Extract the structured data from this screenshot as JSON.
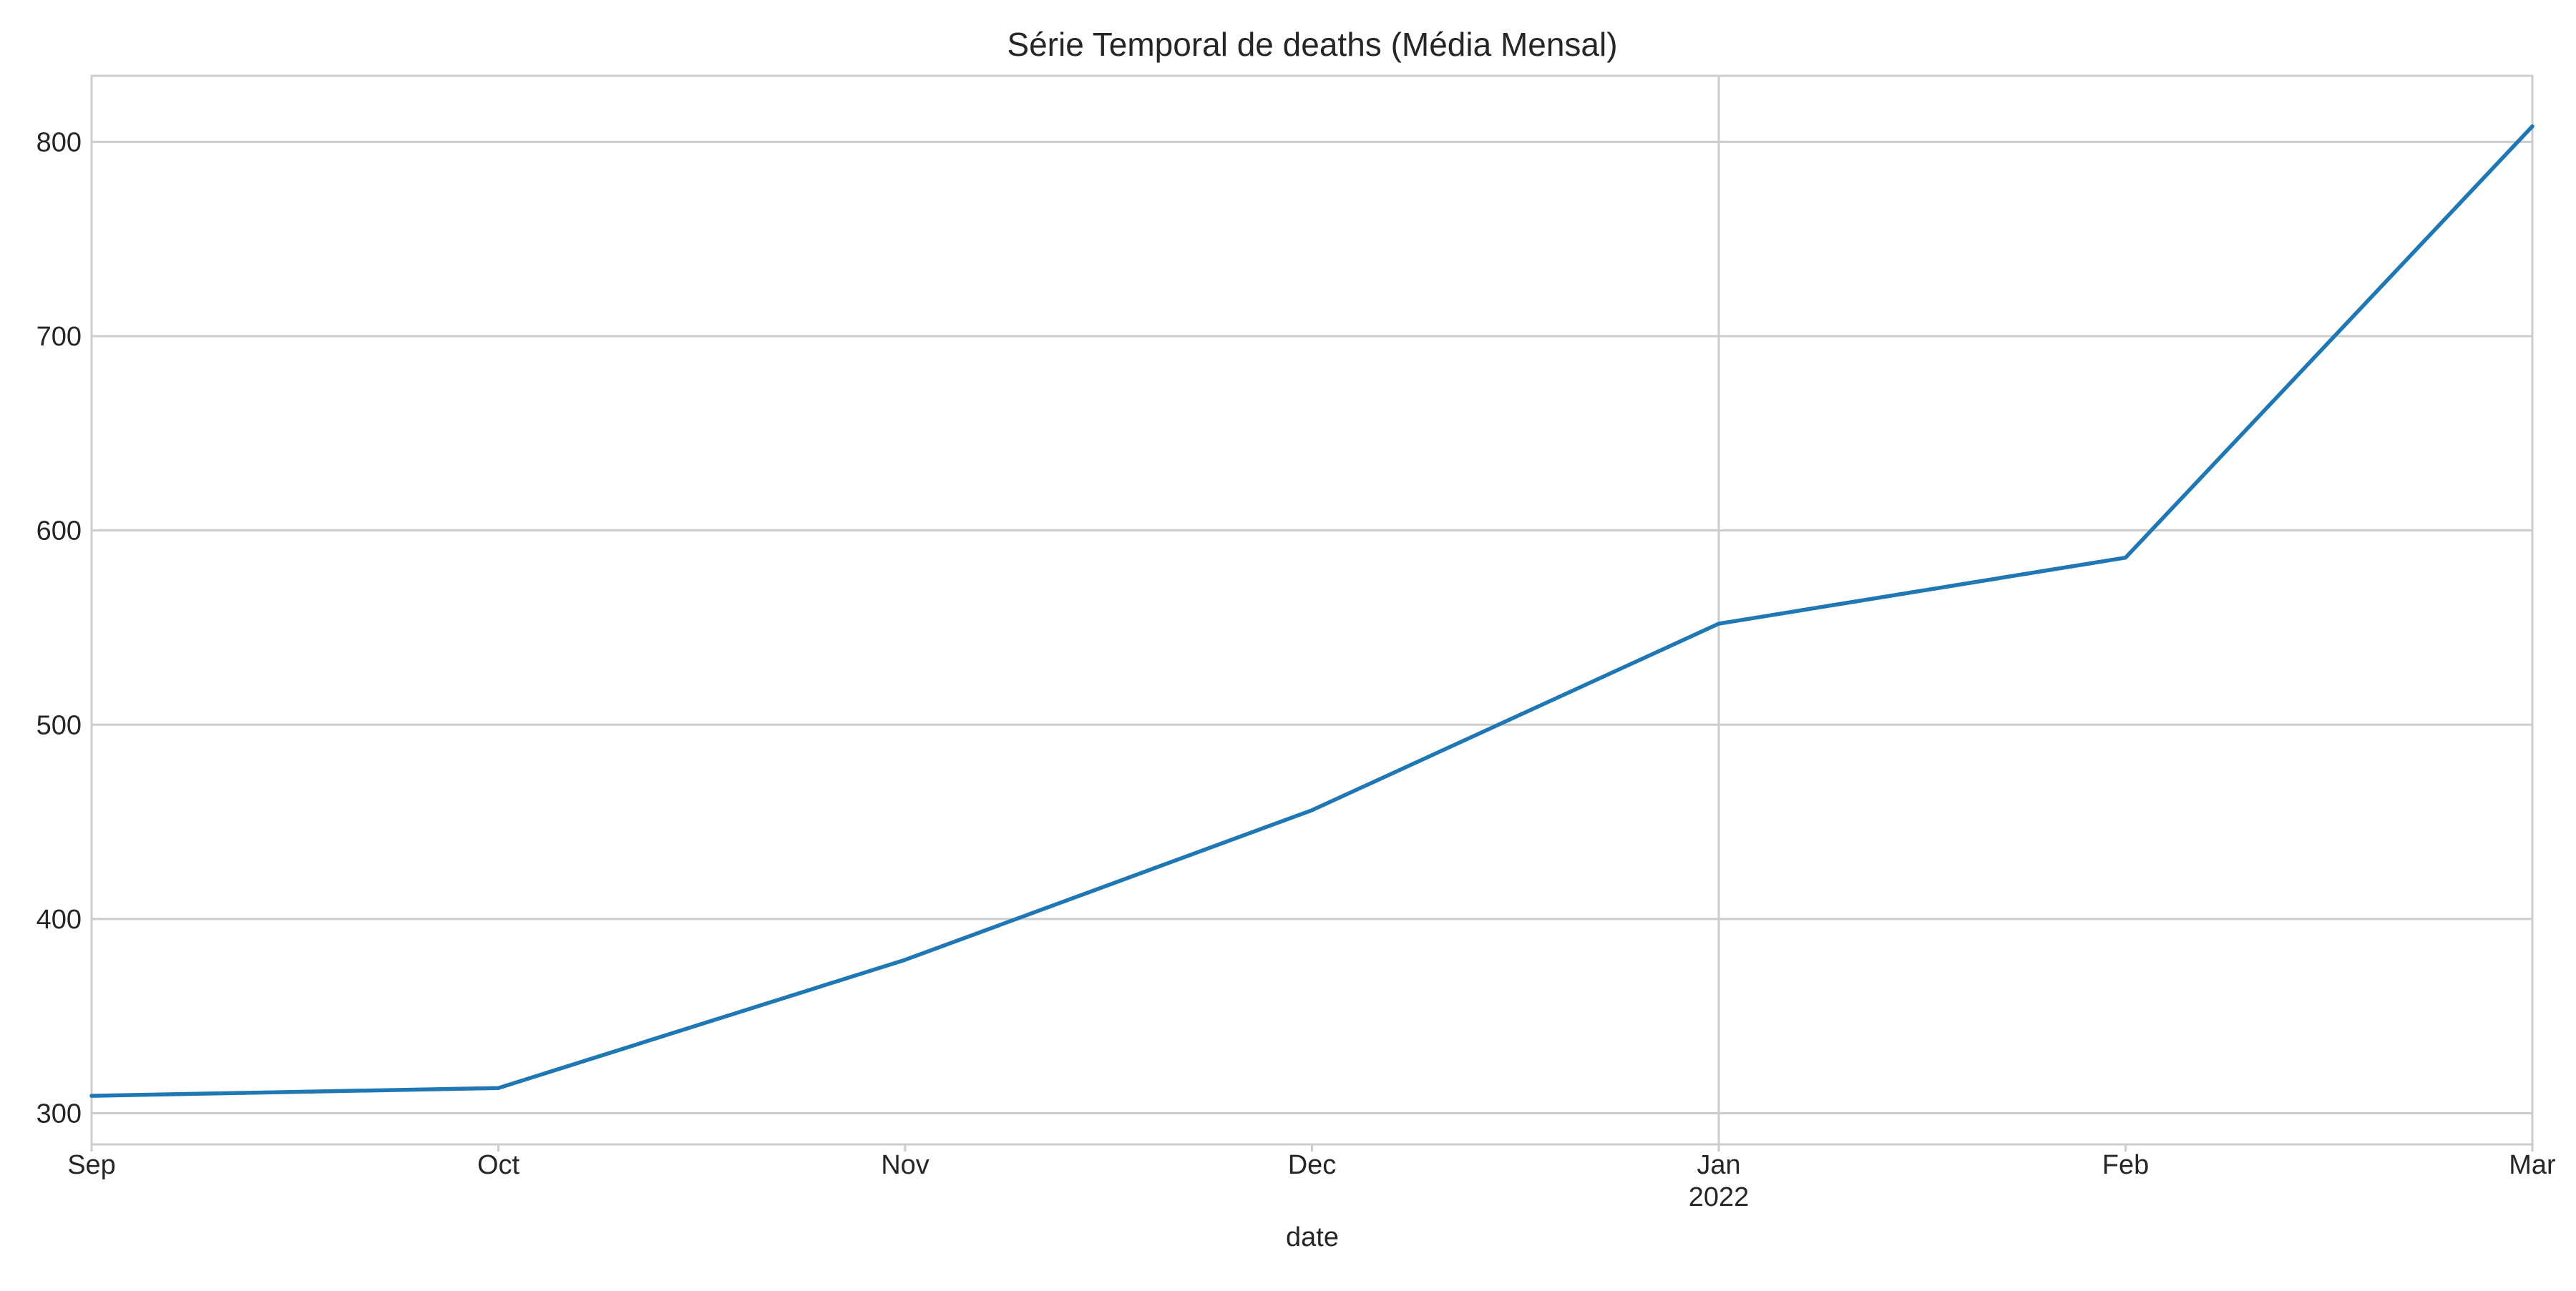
{
  "chart_data": {
    "type": "line",
    "title": "Série Temporal de deaths (Média Mensal)",
    "xlabel": "date",
    "ylabel": "",
    "x": [
      "2021-09",
      "2021-10",
      "2021-11",
      "2021-12",
      "2022-01",
      "2022-02",
      "2022-03"
    ],
    "x_tick_labels": [
      "Sep",
      "Oct",
      "Nov",
      "Dec",
      "Jan",
      "Feb",
      "Mar"
    ],
    "x_tick_year_label": "2022",
    "y_ticks": [
      300,
      400,
      500,
      600,
      700,
      800
    ],
    "ylim": [
      284,
      834
    ],
    "grid": true,
    "legend": "none",
    "series": [
      {
        "values": [
          309,
          313,
          379,
          456,
          552,
          586,
          808
        ],
        "color": "#1f77b4"
      }
    ]
  }
}
